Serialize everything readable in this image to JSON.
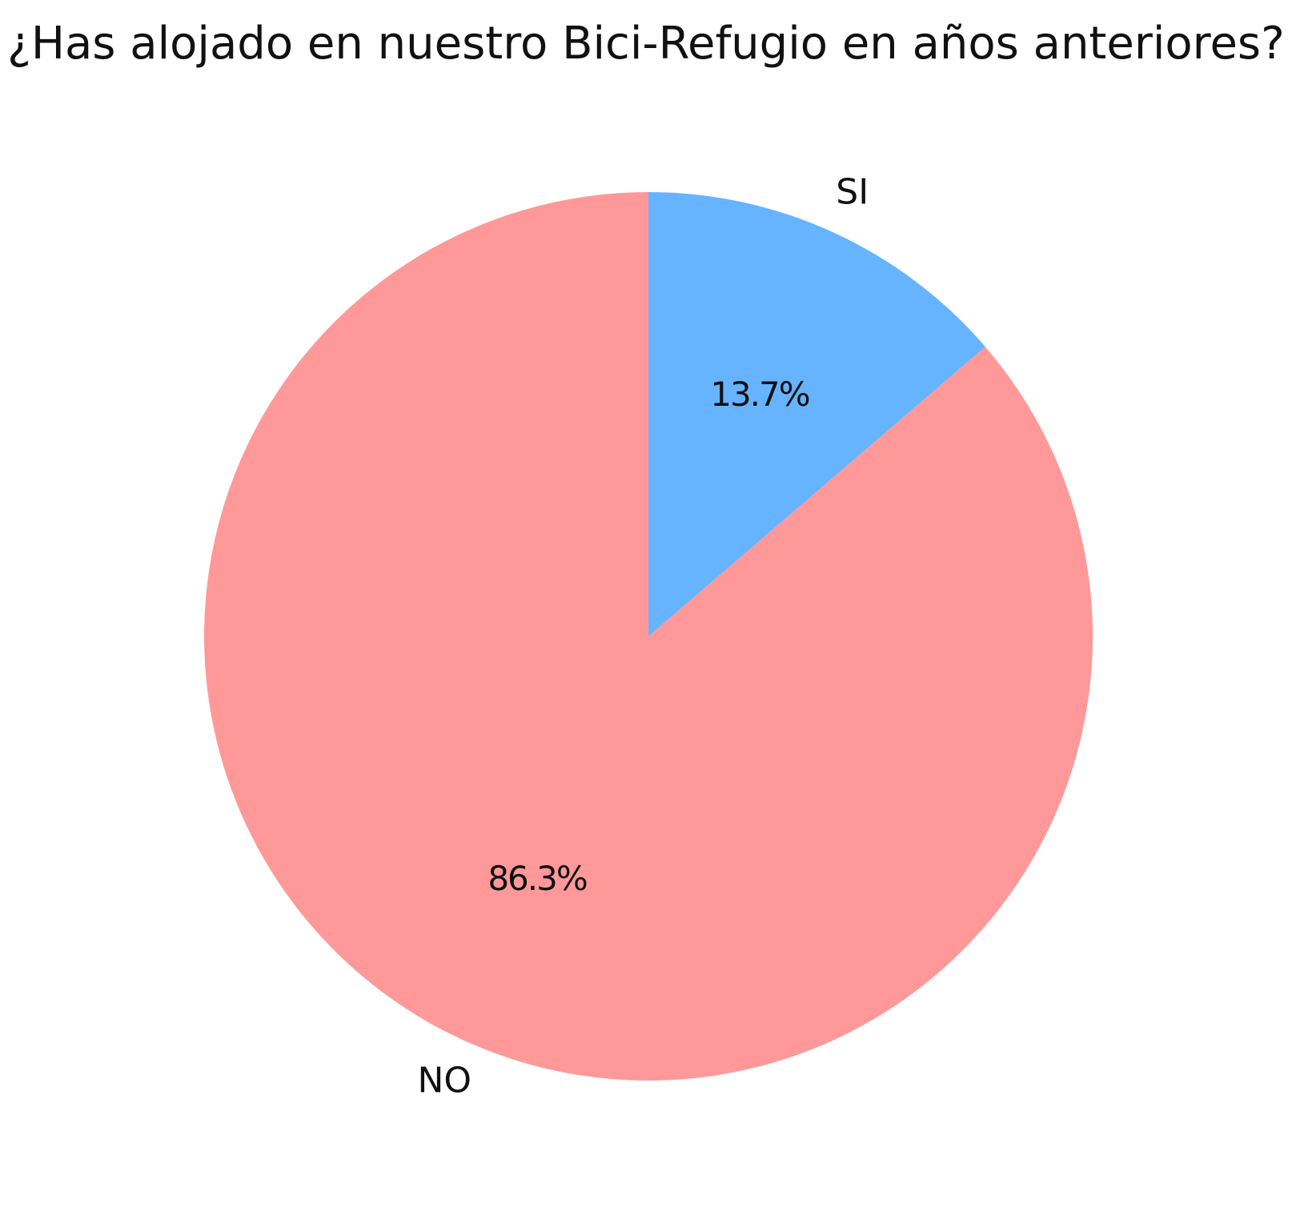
{
  "chart_data": {
    "type": "pie",
    "title": "¿Has alojado en nuestro Bici-Refugio en años anteriores?",
    "slices": [
      {
        "label": "SI",
        "value": 13.7,
        "pct_label": "13.7%",
        "color": "#66b3ff"
      },
      {
        "label": "NO",
        "value": 86.3,
        "pct_label": "86.3%",
        "color": "#ff9999"
      }
    ],
    "start": "top",
    "direction": "clockwise",
    "legend": "none"
  }
}
